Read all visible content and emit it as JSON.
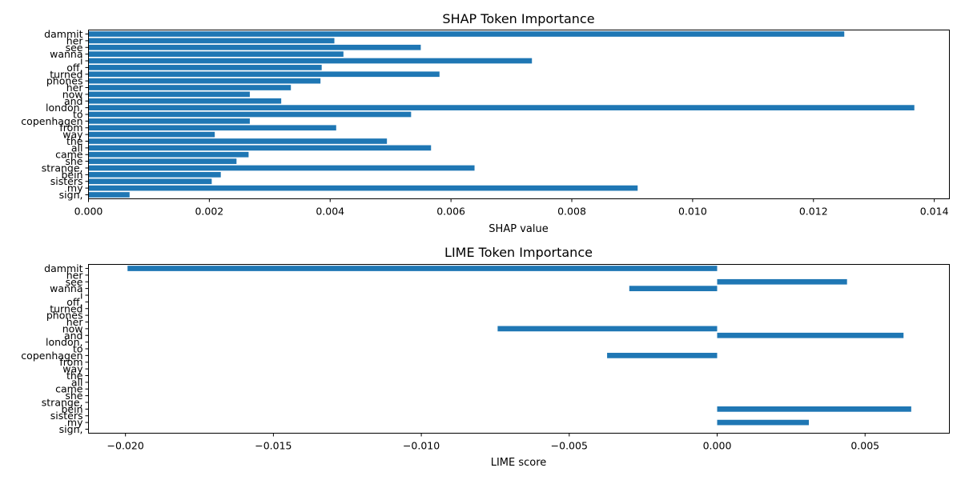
{
  "chart_data": [
    {
      "type": "bar",
      "orientation": "horizontal",
      "title": "SHAP Token Importance",
      "xlabel": "SHAP value",
      "ylabel": "",
      "xlim": [
        0,
        0.01425
      ],
      "xticks": [
        0.0,
        0.002,
        0.004,
        0.006,
        0.008,
        0.01,
        0.012,
        0.014
      ],
      "xtick_labels": [
        "0.000",
        "0.002",
        "0.004",
        "0.006",
        "0.008",
        "0.010",
        "0.012",
        "0.014"
      ],
      "grid": false,
      "bar_color": "#1f77b4",
      "categories": [
        "dammit",
        "her",
        "see",
        "wanna",
        "i",
        "off,",
        "turned",
        "phones",
        "her",
        "now",
        "and",
        "london,",
        "to",
        "copenhagen",
        "from",
        "way",
        "the",
        "all",
        "came",
        "she",
        "strange,",
        "bein",
        "sisters",
        "my",
        "sign,"
      ],
      "values": [
        0.01251,
        0.00407,
        0.0055,
        0.00422,
        0.00734,
        0.00386,
        0.00581,
        0.00384,
        0.00335,
        0.00267,
        0.00319,
        0.01367,
        0.00534,
        0.00267,
        0.0041,
        0.00209,
        0.00494,
        0.00567,
        0.00265,
        0.00245,
        0.00639,
        0.00219,
        0.00204,
        0.00909,
        0.00068
      ]
    },
    {
      "type": "bar",
      "orientation": "horizontal",
      "title": "LIME Token Importance",
      "xlabel": "LIME score",
      "ylabel": "",
      "xlim": [
        -0.02125,
        0.00785
      ],
      "xticks": [
        -0.02,
        -0.015,
        -0.01,
        -0.005,
        0.0,
        0.005
      ],
      "xtick_labels": [
        "−0.020",
        "−0.015",
        "−0.010",
        "−0.005",
        "0.000",
        "0.005"
      ],
      "grid": false,
      "bar_color": "#1f77b4",
      "categories": [
        "dammit",
        "her",
        "see",
        "wanna",
        "i",
        "off,",
        "turned",
        "phones",
        "her",
        "now",
        "and",
        "london,",
        "to",
        "copenhagen",
        "from",
        "way",
        "the",
        "all",
        "came",
        "she",
        "strange,",
        "bein",
        "sisters",
        "my",
        "sign,"
      ],
      "values": [
        -0.01993,
        0,
        0.00439,
        -0.00297,
        0,
        0,
        0,
        0,
        0,
        -0.00742,
        0.0063,
        0,
        0,
        -0.00372,
        0,
        0,
        0,
        0,
        0,
        0,
        0,
        0.00656,
        0,
        0.0031,
        0
      ]
    }
  ]
}
